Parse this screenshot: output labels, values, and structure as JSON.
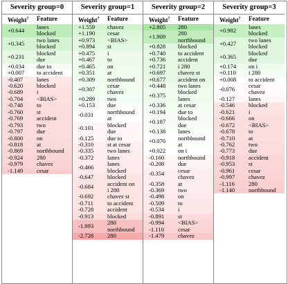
{
  "columns": [
    {
      "title": "Severity group=0",
      "weight_header": "Weight",
      "weight_header_sup": "?",
      "feature_header": "Feature",
      "rows": [
        {
          "w": "+0.644",
          "f": [
            "lanes",
            "blocked"
          ],
          "c": "#bcecb8"
        },
        {
          "w": "+0.345",
          "f": [
            "two lanes",
            "blocked"
          ],
          "c": "#d6f4d4"
        },
        {
          "w": "+0.231",
          "f": [
            "blocked",
            "due"
          ],
          "c": "#e4f8e2"
        },
        {
          "w": "+0.034",
          "f": [
            "due to"
          ],
          "c": "#f6fdf6"
        },
        {
          "w": "+0.007",
          "f": [
            "to accident"
          ],
          "c": "#fdfffd"
        },
        {
          "w": "-0.407",
          "f": [
            "lanes"
          ],
          "c": "#fde8e8"
        },
        {
          "w": "-0.620",
          "f": [
            "blocked"
          ],
          "c": "#fce2e2"
        },
        {
          "w": "-0.689",
          "f": [
            "i"
          ],
          "c": "#fcdfdf"
        },
        {
          "w": "-0.704",
          "f": [
            "<BIAS>"
          ],
          "c": "#fcdfdf"
        },
        {
          "w": "-0.748",
          "f": [
            "to"
          ],
          "c": "#fbdddd"
        },
        {
          "w": "-0.760",
          "f": [
            "st"
          ],
          "c": "#fbdcdc"
        },
        {
          "w": "-0.769",
          "f": [
            "accident"
          ],
          "c": "#fbdcdc"
        },
        {
          "w": "-0.793",
          "f": [
            "two"
          ],
          "c": "#fbdbdb"
        },
        {
          "w": "-0.797",
          "f": [
            "due"
          ],
          "c": "#fbdbdb"
        },
        {
          "w": "-0.800",
          "f": [
            "on"
          ],
          "c": "#fbdbdb"
        },
        {
          "w": "-0.818",
          "f": [
            "at"
          ],
          "c": "#fbdada"
        },
        {
          "w": "-0.869",
          "f": [
            "northbound"
          ],
          "c": "#fbd8d8"
        },
        {
          "w": "-0.924",
          "f": [
            "280"
          ],
          "c": "#fad6d6"
        },
        {
          "w": "-0.979",
          "f": [
            "chavez"
          ],
          "c": "#fad4d4"
        },
        {
          "w": "-1.149",
          "f": [
            "cesar"
          ],
          "c": "#f9cece"
        }
      ]
    },
    {
      "title": "Severity group=1",
      "weight_header": "Weight",
      "weight_header_sup": "?",
      "feature_header": "Feature",
      "rows": [
        {
          "w": "+1.559",
          "f": [
            "chavez"
          ],
          "c": "#d2f2cf"
        },
        {
          "w": "+1.190",
          "f": [
            "cesar"
          ],
          "c": "#dbf5d9"
        },
        {
          "w": "+0.973",
          "f": [
            "<BIAS>"
          ],
          "c": "#e0f7de"
        },
        {
          "w": "+0.894",
          "f": [
            "st"
          ],
          "c": "#e3f8e1"
        },
        {
          "w": "+0.475",
          "f": [
            "i"
          ],
          "c": "#edfaec"
        },
        {
          "w": "+0.467",
          "f": [
            "to"
          ],
          "c": "#edfaec"
        },
        {
          "w": "+0.465",
          "f": [
            "on"
          ],
          "c": "#edfaec"
        },
        {
          "w": "+0.351",
          "f": [
            "at"
          ],
          "c": "#f0fbef"
        },
        {
          "w": "+0.309",
          "f": [
            "northbound"
          ],
          "c": "#f1fcf0"
        },
        {
          "w": "+0.307",
          "f": [
            "cesar",
            "chavez"
          ],
          "c": "#f2fcf1"
        },
        {
          "w": "+0.289",
          "f": [
            "two"
          ],
          "c": "#f3fcf2"
        },
        {
          "w": "+0.153",
          "f": [
            "due"
          ],
          "c": "#f8fdf8"
        },
        {
          "w": "-0.031",
          "f": [
            "northbound",
            "at"
          ],
          "c": "#fffcfc"
        },
        {
          "w": "-0.101",
          "f": [
            "blocked",
            "due"
          ],
          "c": "#fef6f6"
        },
        {
          "w": "-0.125",
          "f": [
            "due to"
          ],
          "c": "#fef5f5"
        },
        {
          "w": "-0.310",
          "f": [
            "st at cesar"
          ],
          "c": "#fdefef"
        },
        {
          "w": "-0.335",
          "f": [
            "two lanes"
          ],
          "c": "#fdeeee"
        },
        {
          "w": "-0.372",
          "f": [
            "lanes"
          ],
          "c": "#fdeded"
        },
        {
          "w": "-0.466",
          "f": [
            "lanes",
            "blocked"
          ],
          "c": "#fdeaea"
        },
        {
          "w": "-0.647",
          "f": [
            "blocked"
          ],
          "c": "#fce5e5"
        },
        {
          "w": "-0.684",
          "f": [
            "accident on",
            "i 280"
          ],
          "c": "#fce4e4"
        },
        {
          "w": "-0.692",
          "f": [
            "chavez st"
          ],
          "c": "#fce4e4"
        },
        {
          "w": "-0.711",
          "f": [
            "to accident"
          ],
          "c": "#fce3e3"
        },
        {
          "w": "-0.728",
          "f": [
            "accident"
          ],
          "c": "#fce3e3"
        },
        {
          "w": "-0.913",
          "f": [
            "blocked"
          ],
          "c": "#fbdddd"
        },
        {
          "w": "-1.993",
          "f": [
            "280",
            "northbound"
          ],
          "c": "#f7bfbf"
        },
        {
          "w": "-2.728",
          "f": [
            "280"
          ],
          "c": "#f4aaaa"
        }
      ]
    },
    {
      "title": "Severity group=2",
      "weight_header": "Weight",
      "weight_header_sup": "?",
      "feature_header": "Feature",
      "rows": [
        {
          "w": "+2.805",
          "f": [
            "280"
          ],
          "c": "#a6e6a0"
        },
        {
          "w": "+1.909",
          "f": [
            "280",
            "northbound"
          ],
          "c": "#c0edbb"
        },
        {
          "w": "+0.828",
          "f": [
            "blocked"
          ],
          "c": "#e1f7df"
        },
        {
          "w": "+0.740",
          "f": [
            "to accident"
          ],
          "c": "#e4f8e2"
        },
        {
          "w": "+0.736",
          "f": [
            "accident"
          ],
          "c": "#e4f8e2"
        },
        {
          "w": "+0.721",
          "f": [
            "i 280"
          ],
          "c": "#e4f8e2"
        },
        {
          "w": "+0.697",
          "f": [
            "chavez st"
          ],
          "c": "#e5f8e3"
        },
        {
          "w": "+0.677",
          "f": [
            "accident on"
          ],
          "c": "#e6f8e4"
        },
        {
          "w": "+0.448",
          "f": [
            "two lanes"
          ],
          "c": "#eefaed"
        },
        {
          "w": "+0.375",
          "f": [
            "blocked",
            "lanes"
          ],
          "c": "#f0fbef"
        },
        {
          "w": "+0.336",
          "f": [
            "at cesar"
          ],
          "c": "#f2fcf1"
        },
        {
          "w": "+0.194",
          "f": [
            "due to"
          ],
          "c": "#f6fdf6"
        },
        {
          "w": "+0.187",
          "f": [
            "blocked",
            "due"
          ],
          "c": "#f7fdf6"
        },
        {
          "w": "+0.138",
          "f": [
            "lanes"
          ],
          "c": "#f9fef8"
        },
        {
          "w": "+0.070",
          "f": [
            "northbound",
            "at"
          ],
          "c": "#fcfffc"
        },
        {
          "w": "+0.022",
          "f": [
            "on i"
          ],
          "c": "#fefffe"
        },
        {
          "w": "-0.160",
          "f": [
            "northbound"
          ],
          "c": "#fef5f5"
        },
        {
          "w": "-0.208",
          "f": [
            "due"
          ],
          "c": "#fef3f3"
        },
        {
          "w": "-0.354",
          "f": [
            "cesar",
            "chavez"
          ],
          "c": "#fdeeee"
        },
        {
          "w": "-0.358",
          "f": [
            "at"
          ],
          "c": "#fdeeee"
        },
        {
          "w": "-0.369",
          "f": [
            "two"
          ],
          "c": "#fdeded"
        },
        {
          "w": "-0.498",
          "f": [
            "on"
          ],
          "c": "#fce9e9"
        },
        {
          "w": "-0.509",
          "f": [
            "to"
          ],
          "c": "#fce8e8"
        },
        {
          "w": "-0.534",
          "f": [
            "i"
          ],
          "c": "#fce7e7"
        },
        {
          "w": "-0.891",
          "f": [
            "st"
          ],
          "c": "#fbdbdb"
        },
        {
          "w": "-0.994",
          "f": [
            "<BIAS>"
          ],
          "c": "#fad7d7"
        },
        {
          "w": "-1.110",
          "f": [
            "cesar"
          ],
          "c": "#fad3d3"
        },
        {
          "w": "-1.479",
          "f": [
            "chavez"
          ],
          "c": "#f8c8c8"
        }
      ]
    },
    {
      "title": "Severity group=3",
      "weight_header": "Weight",
      "weight_header_sup": "?",
      "feature_header": "Feature",
      "rows": [
        {
          "w": "+0.982",
          "f": [
            "lanes",
            "blocked"
          ],
          "c": "#c4efc0"
        },
        {
          "w": "+0.427",
          "f": [
            "two lanes",
            "blocked"
          ],
          "c": "#def6dc"
        },
        {
          "w": "+0.365",
          "f": [
            "blocked",
            "due"
          ],
          "c": "#e2f7e0"
        },
        {
          "w": "+0.174",
          "f": [
            "on i"
          ],
          "c": "#eefbed"
        },
        {
          "w": "+0.110",
          "f": [
            "i 280"
          ],
          "c": "#f3fcf2"
        },
        {
          "w": "+0.008",
          "f": [
            "to accident"
          ],
          "c": "#fdfffd"
        },
        {
          "w": "-0.076",
          "f": [
            "cesar",
            "chavez"
          ],
          "c": "#fefafa"
        },
        {
          "w": "-0.127",
          "f": [
            "lanes"
          ],
          "c": "#fef7f7"
        },
        {
          "w": "-0.546",
          "f": [
            "blocked"
          ],
          "c": "#fce4e4"
        },
        {
          "w": "-0.621",
          "f": [
            "i"
          ],
          "c": "#fce1e1"
        },
        {
          "w": "-0.666",
          "f": [
            "on"
          ],
          "c": "#fbdfdf"
        },
        {
          "w": "-0.672",
          "f": [
            "<BIAS>"
          ],
          "c": "#fbdfdf"
        },
        {
          "w": "-0.678",
          "f": [
            "to"
          ],
          "c": "#fbdfdf"
        },
        {
          "w": "-0.710",
          "f": [
            "at"
          ],
          "c": "#fbdede"
        },
        {
          "w": "-0.762",
          "f": [
            "two"
          ],
          "c": "#fbdcdc"
        },
        {
          "w": "-0.773",
          "f": [
            "due"
          ],
          "c": "#fbdbdb"
        },
        {
          "w": "-0.918",
          "f": [
            "accident"
          ],
          "c": "#fad6d6"
        },
        {
          "w": "-0.953",
          "f": [
            "st"
          ],
          "c": "#fad5d5"
        },
        {
          "w": "-0.961",
          "f": [
            "cesar"
          ],
          "c": "#fad5d5"
        },
        {
          "w": "-0.997",
          "f": [
            "chavez"
          ],
          "c": "#fad3d3"
        },
        {
          "w": "-1.116",
          "f": [
            "280"
          ],
          "c": "#f9cfcf"
        },
        {
          "w": "-1.140",
          "f": [
            "northbound"
          ],
          "c": "#f9cece"
        }
      ]
    }
  ]
}
